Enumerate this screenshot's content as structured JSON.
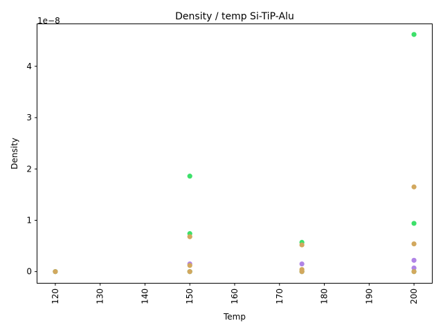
{
  "chart_data": {
    "type": "scatter",
    "title": "Density / temp Si-TiP-Alu",
    "xlabel": "Temp",
    "ylabel": "Density",
    "offset_text": "1e−8",
    "xlim": [
      116,
      204
    ],
    "ylim": [
      -0.22,
      4.82
    ],
    "y_scale_exponent": -8,
    "x_ticks": [
      120,
      130,
      140,
      150,
      160,
      170,
      180,
      190,
      200
    ],
    "y_ticks": [
      0,
      1,
      2,
      3,
      4
    ],
    "grid": false,
    "legend": "none",
    "series": [
      {
        "color": "#b084e6",
        "points": [
          {
            "x": 120,
            "y": 0.0
          },
          {
            "x": 150,
            "y": 0.0
          },
          {
            "x": 150,
            "y": 0.15
          },
          {
            "x": 175,
            "y": 0.0
          },
          {
            "x": 175,
            "y": 0.15
          },
          {
            "x": 200,
            "y": 0.07
          },
          {
            "x": 200,
            "y": 0.22
          }
        ]
      },
      {
        "color": "#3de06a",
        "points": [
          {
            "x": 120,
            "y": 0.0
          },
          {
            "x": 150,
            "y": 1.86
          },
          {
            "x": 150,
            "y": 0.74
          },
          {
            "x": 150,
            "y": 0.0
          },
          {
            "x": 175,
            "y": 0.57
          },
          {
            "x": 175,
            "y": 0.0
          },
          {
            "x": 200,
            "y": 4.62
          },
          {
            "x": 200,
            "y": 0.94
          },
          {
            "x": 200,
            "y": 0.0
          }
        ]
      },
      {
        "color": "#d2a85e",
        "points": [
          {
            "x": 120,
            "y": 0.0
          },
          {
            "x": 150,
            "y": 0.68
          },
          {
            "x": 150,
            "y": 0.12
          },
          {
            "x": 150,
            "y": 0.0
          },
          {
            "x": 175,
            "y": 0.52
          },
          {
            "x": 175,
            "y": 0.04
          },
          {
            "x": 175,
            "y": 0.0
          },
          {
            "x": 200,
            "y": 1.65
          },
          {
            "x": 200,
            "y": 0.54
          },
          {
            "x": 200,
            "y": 0.0
          }
        ]
      }
    ]
  }
}
